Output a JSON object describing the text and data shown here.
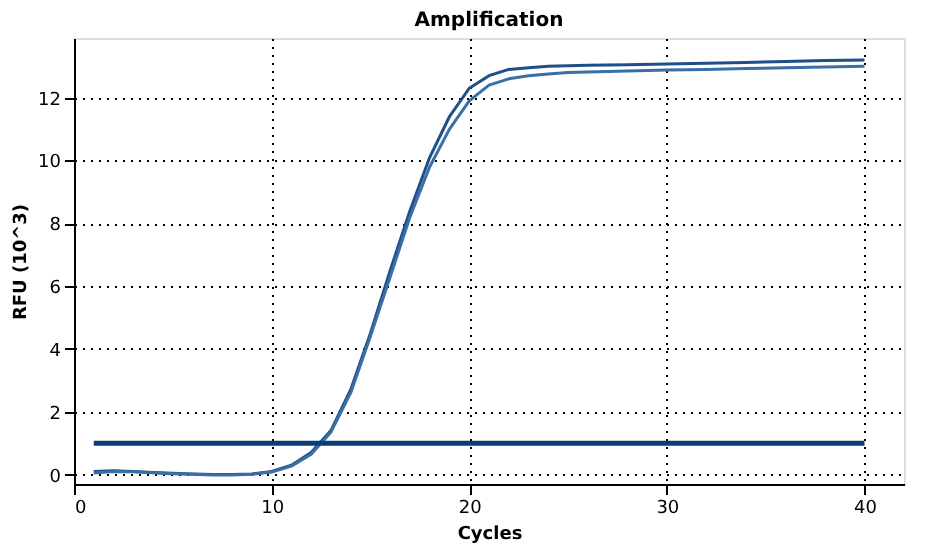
{
  "chart_data": {
    "type": "line",
    "title": "Amplification",
    "xlabel": "Cycles",
    "ylabel": "RFU (10^3)",
    "x": [
      1,
      2,
      3,
      4,
      5,
      6,
      7,
      8,
      9,
      10,
      11,
      12,
      13,
      14,
      15,
      16,
      17,
      18,
      19,
      20,
      21,
      22,
      23,
      24,
      25,
      26,
      28,
      30,
      32,
      34,
      36,
      38,
      40
    ],
    "series": [
      {
        "color": "#1f4f8a",
        "values": [
          0.1,
          0.12,
          0.1,
          0.07,
          0.04,
          0.02,
          0.0,
          0.0,
          0.02,
          0.1,
          0.3,
          0.7,
          1.4,
          2.7,
          4.5,
          6.5,
          8.4,
          10.1,
          11.4,
          12.3,
          12.7,
          12.9,
          12.95,
          13.0,
          13.02,
          13.03,
          13.05,
          13.07,
          13.1,
          13.12,
          13.15,
          13.18,
          13.2
        ]
      },
      {
        "color": "#3a6ea5",
        "values": [
          0.05,
          0.1,
          0.09,
          0.06,
          0.03,
          0.01,
          -0.01,
          -0.01,
          0.01,
          0.08,
          0.27,
          0.65,
          1.35,
          2.6,
          4.4,
          6.3,
          8.2,
          9.8,
          11.0,
          11.9,
          12.4,
          12.6,
          12.7,
          12.75,
          12.8,
          12.82,
          12.85,
          12.88,
          12.9,
          12.93,
          12.95,
          12.98,
          13.0
        ]
      },
      {
        "color": "#0b3d7a",
        "x": [
          1,
          40
        ],
        "values": [
          1,
          1
        ]
      }
    ],
    "xlim": [
      0,
      42
    ],
    "ylim": [
      -0.3,
      13.9
    ],
    "xticks": [
      0,
      10,
      20,
      30,
      40
    ],
    "yticks": [
      0,
      2,
      4,
      6,
      8,
      10,
      12
    ],
    "grid": true,
    "line_style": "solid",
    "marker": "none"
  }
}
